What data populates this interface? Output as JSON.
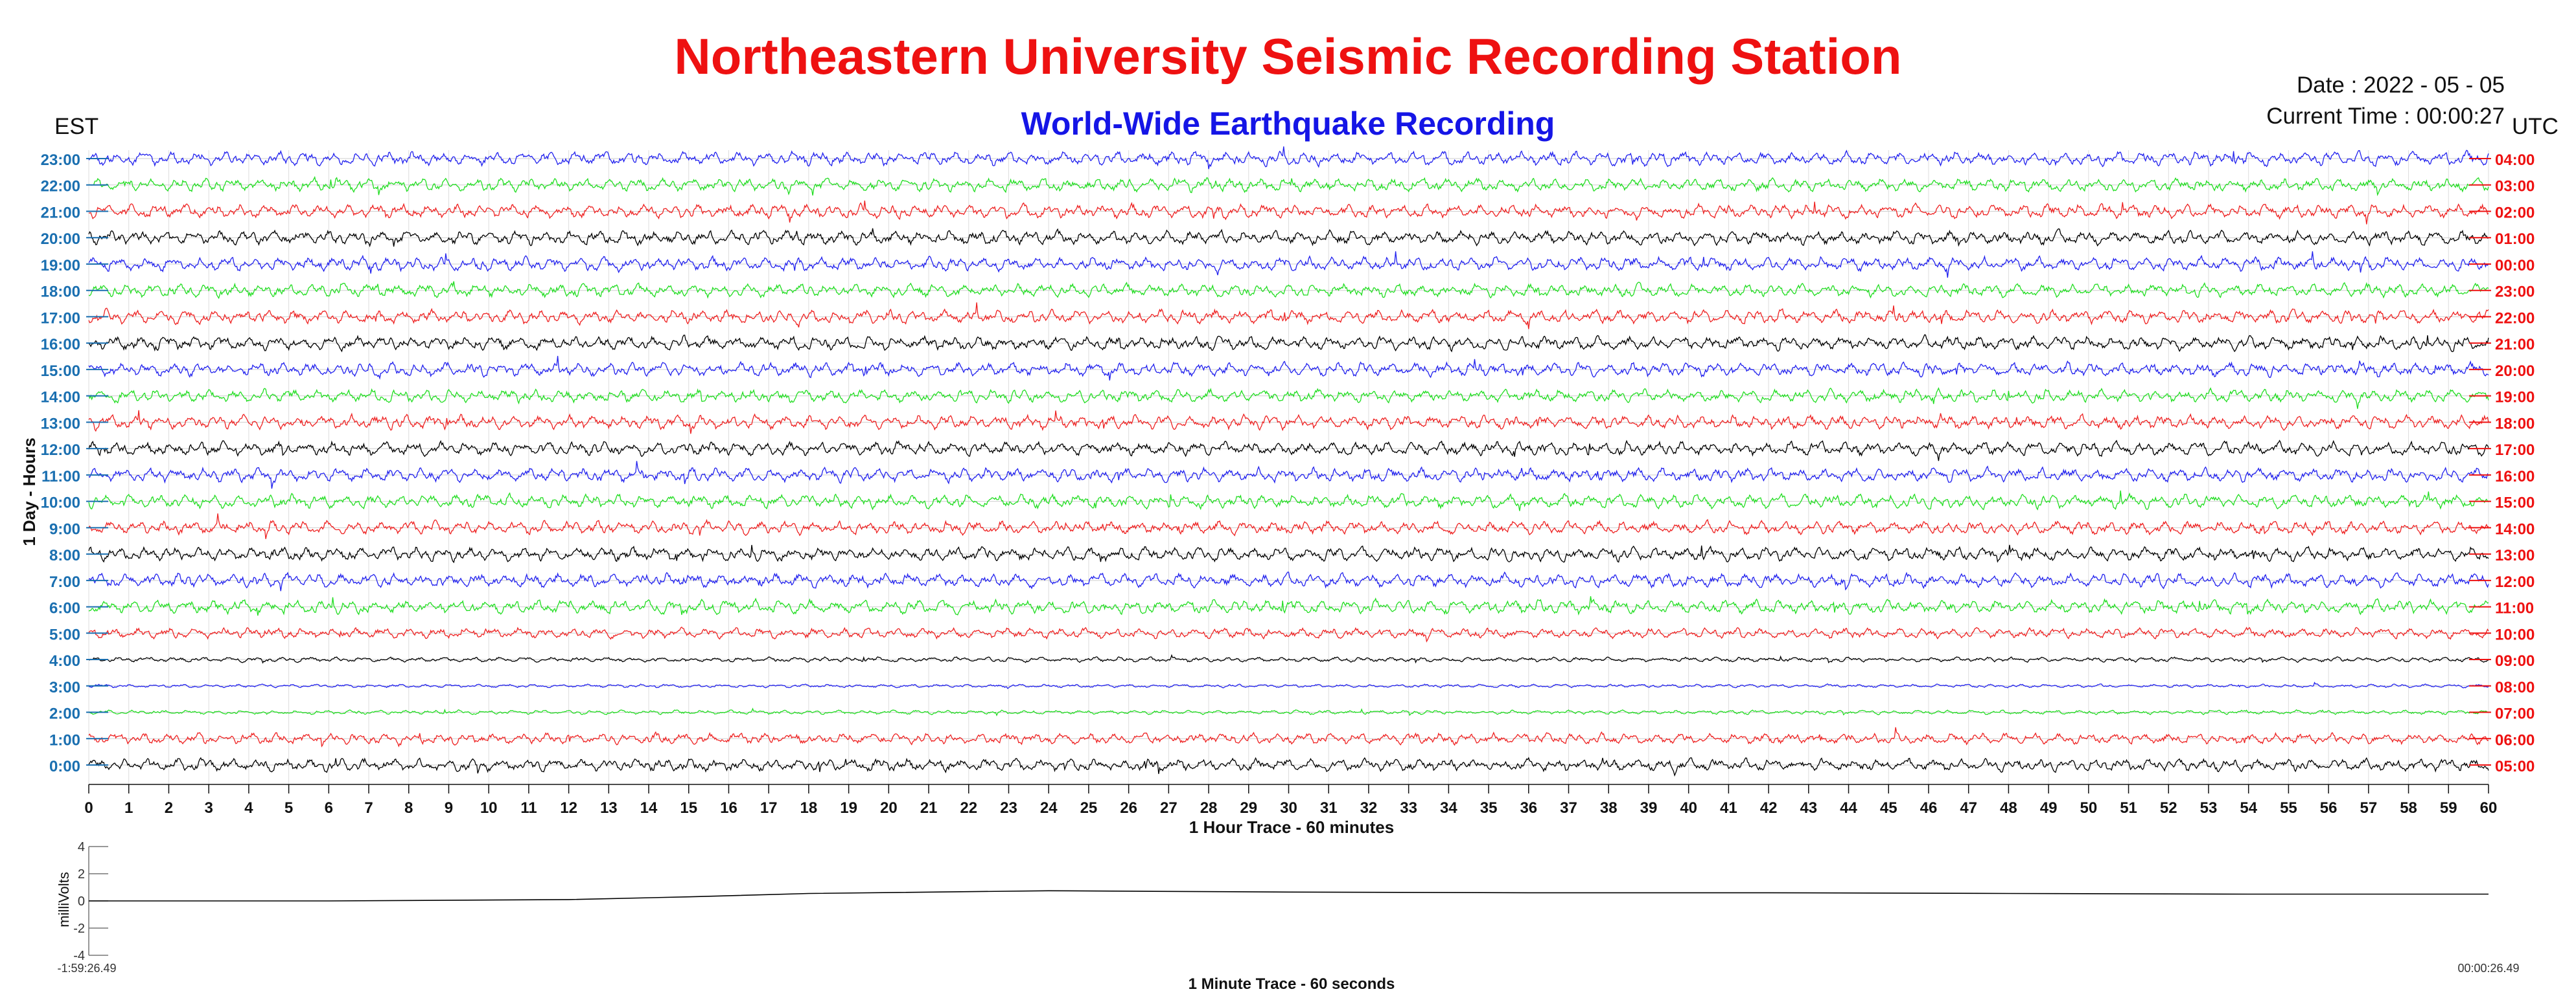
{
  "header": {
    "title": "Northeastern University Seismic Recording Station",
    "subtitle": "World-Wide Earthquake Recording",
    "date_text": "Date : 2022 - 05 - 05",
    "time_text": "Current Time : 00:00:27",
    "left_timezone": "EST",
    "right_timezone": "UTC"
  },
  "colors": {
    "title": "#ee1111",
    "subtitle": "#1515e6",
    "left_tick_labels": "#1a6fb0",
    "right_tick_labels": "#ee1111",
    "trace_cycle": [
      "#000000",
      "#ee2222",
      "#22dd22",
      "#2222ee"
    ]
  },
  "chart_data": [
    {
      "type": "line",
      "xlabel": "1 Hour Trace - 60 minutes",
      "ylabel": "1 Day - Hours",
      "xlim": [
        0,
        60
      ],
      "x_ticks": [
        "0",
        "1",
        "2",
        "3",
        "4",
        "5",
        "6",
        "7",
        "8",
        "9",
        "10",
        "11",
        "12",
        "13",
        "14",
        "15",
        "16",
        "17",
        "18",
        "19",
        "20",
        "21",
        "22",
        "23",
        "24",
        "25",
        "26",
        "27",
        "28",
        "29",
        "30",
        "31",
        "32",
        "33",
        "34",
        "35",
        "36",
        "37",
        "38",
        "39",
        "40",
        "41",
        "42",
        "43",
        "44",
        "45",
        "46",
        "47",
        "48",
        "49",
        "50",
        "51",
        "52",
        "53",
        "54",
        "55",
        "56",
        "57",
        "58",
        "59",
        "60"
      ],
      "grid": true,
      "rows": [
        {
          "est": "0:00",
          "utc": "05:00",
          "color": "#000000",
          "amplitude": 0.9
        },
        {
          "est": "1:00",
          "utc": "06:00",
          "color": "#ee2222",
          "amplitude": 0.8
        },
        {
          "est": "2:00",
          "utc": "07:00",
          "color": "#22dd22",
          "amplitude": 0.3
        },
        {
          "est": "3:00",
          "utc": "08:00",
          "color": "#2222ee",
          "amplitude": 0.25
        },
        {
          "est": "4:00",
          "utc": "09:00",
          "color": "#000000",
          "amplitude": 0.35
        },
        {
          "est": "5:00",
          "utc": "10:00",
          "color": "#ee2222",
          "amplitude": 0.75
        },
        {
          "est": "6:00",
          "utc": "11:00",
          "color": "#22dd22",
          "amplitude": 1.0
        },
        {
          "est": "7:00",
          "utc": "12:00",
          "color": "#2222ee",
          "amplitude": 1.0
        },
        {
          "est": "8:00",
          "utc": "13:00",
          "color": "#000000",
          "amplitude": 1.0
        },
        {
          "est": "9:00",
          "utc": "14:00",
          "color": "#ee2222",
          "amplitude": 0.95
        },
        {
          "est": "10:00",
          "utc": "15:00",
          "color": "#22dd22",
          "amplitude": 1.0
        },
        {
          "est": "11:00",
          "utc": "16:00",
          "color": "#2222ee",
          "amplitude": 1.0
        },
        {
          "est": "12:00",
          "utc": "17:00",
          "color": "#000000",
          "amplitude": 1.0
        },
        {
          "est": "13:00",
          "utc": "18:00",
          "color": "#ee2222",
          "amplitude": 1.0
        },
        {
          "est": "14:00",
          "utc": "19:00",
          "color": "#22dd22",
          "amplitude": 0.95
        },
        {
          "est": "15:00",
          "utc": "20:00",
          "color": "#2222ee",
          "amplitude": 1.0
        },
        {
          "est": "16:00",
          "utc": "21:00",
          "color": "#000000",
          "amplitude": 1.0
        },
        {
          "est": "17:00",
          "utc": "22:00",
          "color": "#ee2222",
          "amplitude": 1.0
        },
        {
          "est": "18:00",
          "utc": "23:00",
          "color": "#22dd22",
          "amplitude": 0.95
        },
        {
          "est": "19:00",
          "utc": "00:00",
          "color": "#2222ee",
          "amplitude": 1.0
        },
        {
          "est": "20:00",
          "utc": "01:00",
          "color": "#000000",
          "amplitude": 1.0
        },
        {
          "est": "21:00",
          "utc": "02:00",
          "color": "#ee2222",
          "amplitude": 1.0
        },
        {
          "est": "22:00",
          "utc": "03:00",
          "color": "#22dd22",
          "amplitude": 0.95
        },
        {
          "est": "23:00",
          "utc": "04:00",
          "color": "#2222ee",
          "amplitude": 1.0
        }
      ]
    },
    {
      "type": "line",
      "xlabel": "1 Minute Trace  - 60 seconds",
      "ylabel": "milliVolts",
      "ylim": [
        -4,
        4
      ],
      "y_ticks": [
        "4",
        "2",
        "0",
        "-2",
        "-4"
      ],
      "x_start_label": "-1:59:26.49",
      "x_end_label": "00:00:26.49",
      "x": [
        0,
        0.1,
        0.2,
        0.25,
        0.3,
        0.4,
        0.5,
        0.6,
        0.7,
        0.8,
        0.9,
        1.0
      ],
      "y": [
        0,
        0,
        0.1,
        0.3,
        0.55,
        0.75,
        0.65,
        0.6,
        0.6,
        0.55,
        0.5,
        0.5
      ]
    }
  ]
}
